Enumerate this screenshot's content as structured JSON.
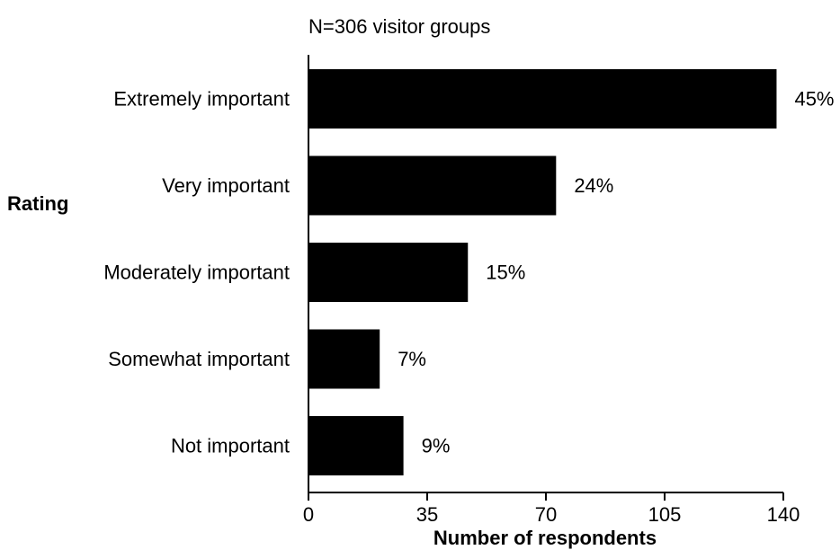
{
  "chart_data": {
    "type": "bar",
    "orientation": "horizontal",
    "subtitle": "N=306 visitor groups",
    "ylabel": "Rating",
    "xlabel": "Number of respondents",
    "categories": [
      "Extremely important",
      "Very important",
      "Moderately important",
      "Somewhat important",
      "Not important"
    ],
    "values": [
      138,
      73,
      47,
      21,
      28
    ],
    "data_labels": [
      "45%",
      "24%",
      "15%",
      "7%",
      "9%"
    ],
    "xlim": [
      0,
      140
    ],
    "xticks": [
      0,
      35,
      70,
      105,
      140
    ],
    "xtick_labels": [
      "0",
      "35",
      "70",
      "105",
      "140"
    ],
    "bar_color": "#000000",
    "grid": false,
    "legend": "none"
  }
}
